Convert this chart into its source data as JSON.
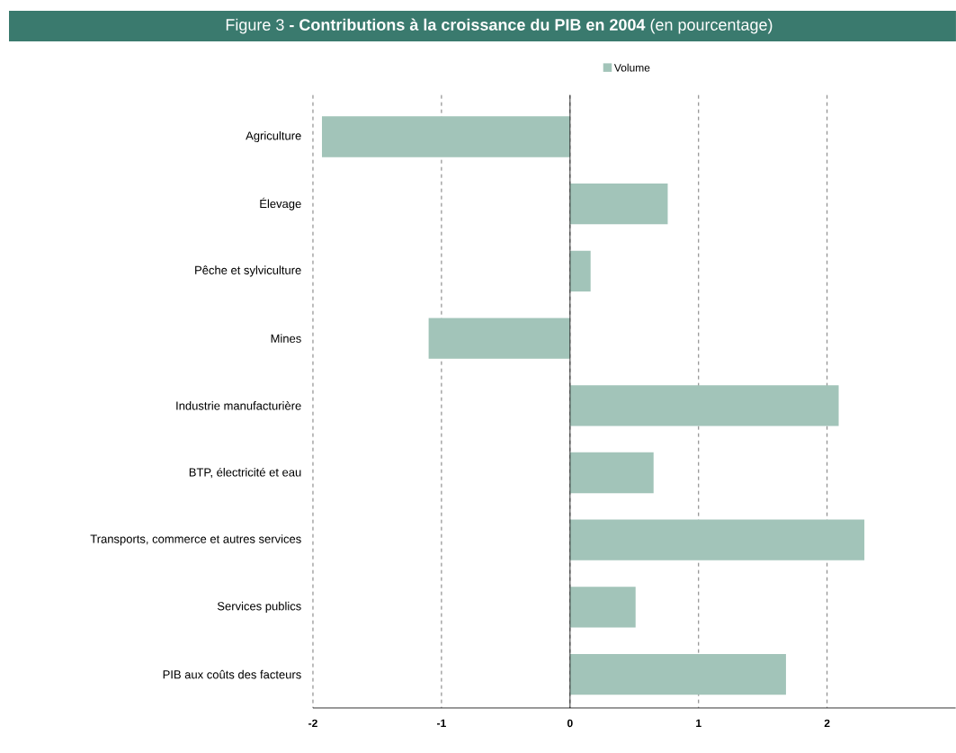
{
  "chart_data": {
    "type": "bar",
    "orientation": "horizontal",
    "title": "Figure 3 **- Contributions à la croissance du PIB en 2004** (en pourcentage)",
    "categories": [
      "Agriculture",
      "Élevage",
      "Pêche et sylviculture",
      "Mines",
      "Industrie manufacturière",
      "BTP, électricité et eau",
      "Transports, commerce et autres services",
      "Services publics",
      "PIB aux coûts des facteurs"
    ],
    "series": [
      {
        "name": "Volume",
        "color": "#a2c4b9",
        "values": [
          -1.93,
          0.76,
          0.16,
          -1.1,
          2.09,
          0.65,
          2.29,
          0.51,
          1.68
        ]
      }
    ],
    "xlim": [
      -2,
      3
    ],
    "xticks": [
      -2,
      -1,
      0,
      1,
      2
    ],
    "grid": "x",
    "legend": "top"
  }
}
